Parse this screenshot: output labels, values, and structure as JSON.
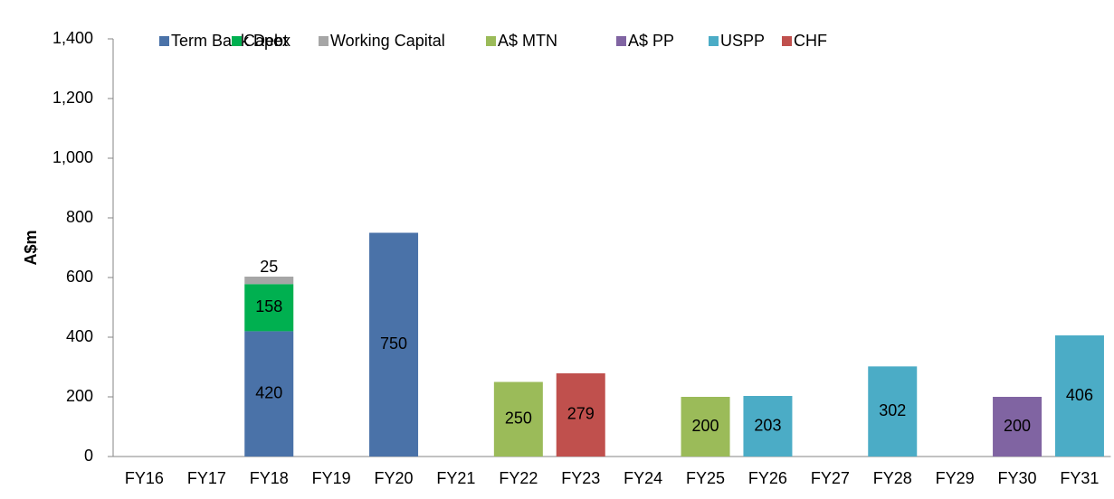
{
  "chart_data": {
    "type": "stacked_bar",
    "y_label": "A$m",
    "categories": [
      "FY16",
      "FY17",
      "FY18",
      "FY19",
      "FY20",
      "FY21",
      "FY22",
      "FY23",
      "FY24",
      "FY25",
      "FY26",
      "FY27",
      "FY28",
      "FY29",
      "FY30",
      "FY31"
    ],
    "series": [
      {
        "name": "Term Bank Debt",
        "color": "#4a72a8",
        "values": [
          null,
          null,
          420,
          null,
          750,
          null,
          null,
          null,
          null,
          null,
          null,
          null,
          null,
          null,
          null,
          null
        ]
      },
      {
        "name": "Capex",
        "color": "#00b050",
        "values": [
          null,
          null,
          158,
          null,
          null,
          null,
          null,
          null,
          null,
          null,
          null,
          null,
          null,
          null,
          null,
          null
        ]
      },
      {
        "name": "Working Capital",
        "color": "#a6a6a6",
        "values": [
          null,
          null,
          25,
          null,
          null,
          null,
          null,
          null,
          null,
          null,
          null,
          null,
          null,
          null,
          null,
          null
        ]
      },
      {
        "name": "A$ MTN",
        "color": "#9bbb59",
        "values": [
          null,
          null,
          null,
          null,
          null,
          null,
          250,
          null,
          null,
          200,
          null,
          null,
          null,
          null,
          null,
          null
        ]
      },
      {
        "name": "A$ PP",
        "color": "#8064a2",
        "values": [
          null,
          null,
          null,
          null,
          null,
          null,
          null,
          null,
          null,
          null,
          null,
          null,
          null,
          null,
          200,
          null
        ]
      },
      {
        "name": "USPP",
        "color": "#4bacc6",
        "values": [
          null,
          null,
          null,
          null,
          null,
          null,
          null,
          null,
          null,
          null,
          203,
          null,
          302,
          null,
          null,
          406
        ]
      },
      {
        "name": "CHF",
        "color": "#c0504d",
        "values": [
          null,
          null,
          null,
          null,
          null,
          null,
          null,
          279,
          null,
          null,
          null,
          null,
          null,
          null,
          null,
          null
        ]
      }
    ],
    "ylim": [
      0,
      1400
    ],
    "yticks": [
      0,
      200,
      400,
      600,
      800,
      {
        "value": 1000,
        "label": "1,000"
      },
      {
        "value": 1200,
        "label": "1,200"
      },
      {
        "value": 1400,
        "label": "1,400"
      }
    ],
    "grid": false,
    "legend": "top"
  }
}
